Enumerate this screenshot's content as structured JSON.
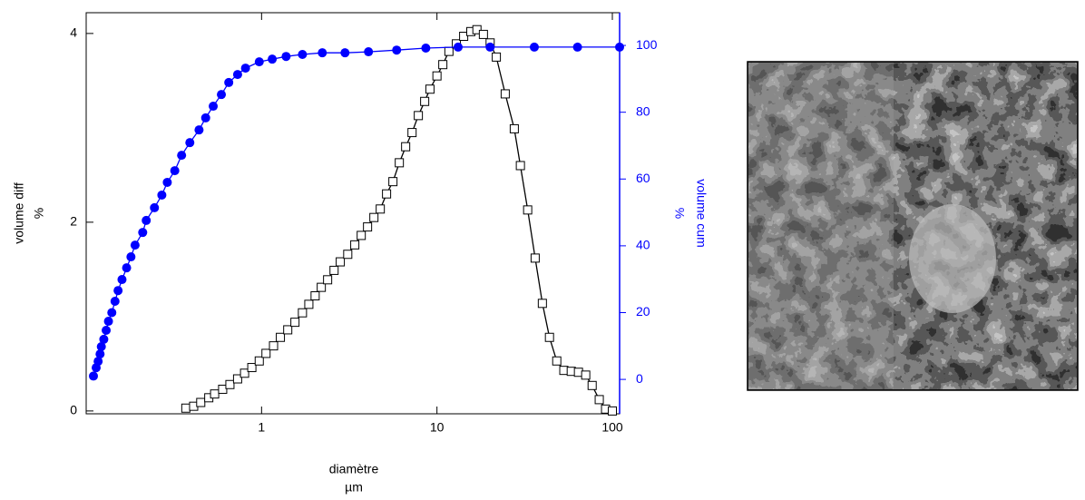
{
  "chart_data": {
    "type": "line",
    "xscale": "log",
    "x_label": "diamètre",
    "x_unit": "µm",
    "y_label": "volume diff",
    "y_unit": "%",
    "y2_label": "volume cum",
    "y2_unit": "%",
    "xlim": [
      0.1,
      110
    ],
    "xticks": [
      1,
      10,
      100
    ],
    "ylim": [
      -0.03,
      4.22
    ],
    "yticks": [
      0,
      2,
      4
    ],
    "y2lim": [
      -10.3,
      109.8
    ],
    "y2ticks": [
      0,
      20,
      40,
      60,
      80,
      100
    ],
    "y2color": "#0000ff",
    "series": [
      {
        "name": "volume diff",
        "color": "#000000",
        "marker": "square-open",
        "x": [
          0.37,
          0.41,
          0.45,
          0.5,
          0.54,
          0.6,
          0.66,
          0.73,
          0.8,
          0.88,
          0.97,
          1.06,
          1.17,
          1.28,
          1.41,
          1.55,
          1.71,
          1.86,
          2.02,
          2.19,
          2.38,
          2.59,
          2.81,
          3.1,
          3.4,
          3.7,
          4.02,
          4.37,
          4.75,
          5.16,
          5.61,
          6.1,
          6.63,
          7.21,
          7.83,
          8.51,
          9.12,
          10,
          10.8,
          11.7,
          12.9,
          14.2,
          15.6,
          16.9,
          18.4,
          20.1,
          21.8,
          24.5,
          27.6,
          29.9,
          32.9,
          36.3,
          39.9,
          43.8,
          48.2,
          52.9,
          58.3,
          64.1,
          70.5,
          76.7,
          84.2,
          91.5,
          100
        ],
        "values": [
          0.03,
          0.05,
          0.09,
          0.14,
          0.18,
          0.23,
          0.28,
          0.34,
          0.4,
          0.46,
          0.53,
          0.61,
          0.69,
          0.78,
          0.86,
          0.94,
          1.04,
          1.13,
          1.22,
          1.31,
          1.39,
          1.49,
          1.58,
          1.66,
          1.76,
          1.86,
          1.95,
          2.05,
          2.14,
          2.3,
          2.43,
          2.63,
          2.8,
          2.95,
          3.13,
          3.28,
          3.41,
          3.55,
          3.67,
          3.81,
          3.89,
          3.97,
          4.02,
          4.04,
          3.99,
          3.9,
          3.75,
          3.36,
          2.99,
          2.6,
          2.13,
          1.62,
          1.14,
          0.78,
          0.53,
          0.43,
          0.42,
          0.41,
          0.38,
          0.27,
          0.12,
          0.02,
          0
        ]
      },
      {
        "name": "volume cum",
        "color": "#0000ff",
        "marker": "circle",
        "axis": "y2",
        "x": [
          0.11,
          0.114,
          0.117,
          0.12,
          0.122,
          0.126,
          0.13,
          0.134,
          0.14,
          0.146,
          0.152,
          0.16,
          0.17,
          0.18,
          0.19,
          0.21,
          0.22,
          0.245,
          0.27,
          0.29,
          0.32,
          0.35,
          0.39,
          0.44,
          0.48,
          0.53,
          0.59,
          0.65,
          0.73,
          0.81,
          0.97,
          1.15,
          1.38,
          1.71,
          2.22,
          2.99,
          4.07,
          5.89,
          8.64,
          13.2,
          20.1,
          35.9,
          63.3,
          110
        ],
        "values": [
          1,
          3.5,
          5.4,
          7.6,
          9.8,
          12,
          14.7,
          17.4,
          20,
          23.4,
          26.6,
          29.9,
          33.4,
          36.7,
          40.2,
          44,
          47.6,
          51.4,
          55.2,
          59,
          62.5,
          67.1,
          70.9,
          74.7,
          78.3,
          81.8,
          85.3,
          88.9,
          91.3,
          93.2,
          95.1,
          95.9,
          96.7,
          97.3,
          97.8,
          97.8,
          98.1,
          98.6,
          99.2,
          99.5,
          99.5,
          99.5,
          99.5,
          99.5
        ]
      }
    ]
  }
}
